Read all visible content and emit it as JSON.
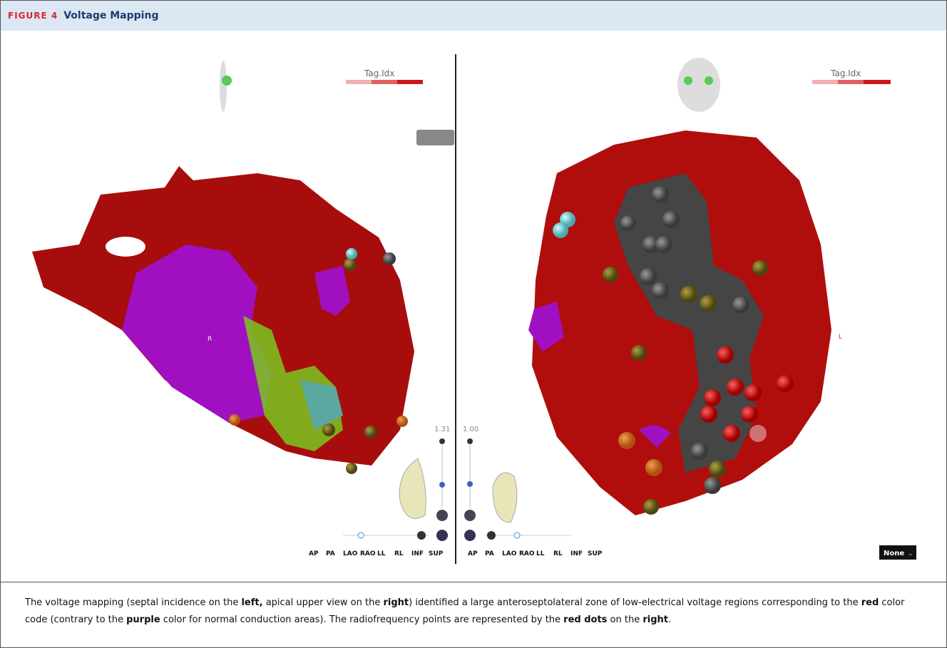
{
  "header": {
    "label": "FIGURE 4",
    "title": "Voltage Mapping"
  },
  "panels": [
    {
      "legend": "Tag.Idx",
      "scale_value": "1.31",
      "marker": "R",
      "views": [
        "AP",
        "PA",
        "LAO",
        "RAO",
        "LL",
        "RL",
        "INF",
        "SUP"
      ]
    },
    {
      "legend": "Tag.Idx",
      "scale_value": "1.00",
      "marker": "L",
      "views": [
        "AP",
        "PA",
        "LAO",
        "RAO",
        "LL",
        "RL",
        "INF",
        "SUP"
      ]
    }
  ],
  "dropdown": "None",
  "caption": [
    {
      "text": "The voltage mapping (septal incidence on the ",
      "bold": false
    },
    {
      "text": "left,",
      "bold": true
    },
    {
      "text": " apical upper view on the ",
      "bold": false
    },
    {
      "text": "right",
      "bold": true
    },
    {
      "text": ") identified a large anteroseptolateral zone of low-electrical voltage regions corresponding to the ",
      "bold": false
    },
    {
      "text": "red",
      "bold": true
    },
    {
      "text": " color code (contrary to the ",
      "bold": false
    },
    {
      "text": "purple",
      "bold": true
    },
    {
      "text": " color for normal conduction areas). The radiofrequency points are represented by the ",
      "bold": false
    },
    {
      "text": "red dots",
      "bold": true
    },
    {
      "text": " on the ",
      "bold": false
    },
    {
      "text": "right",
      "bold": true
    },
    {
      "text": ".",
      "bold": false
    }
  ]
}
